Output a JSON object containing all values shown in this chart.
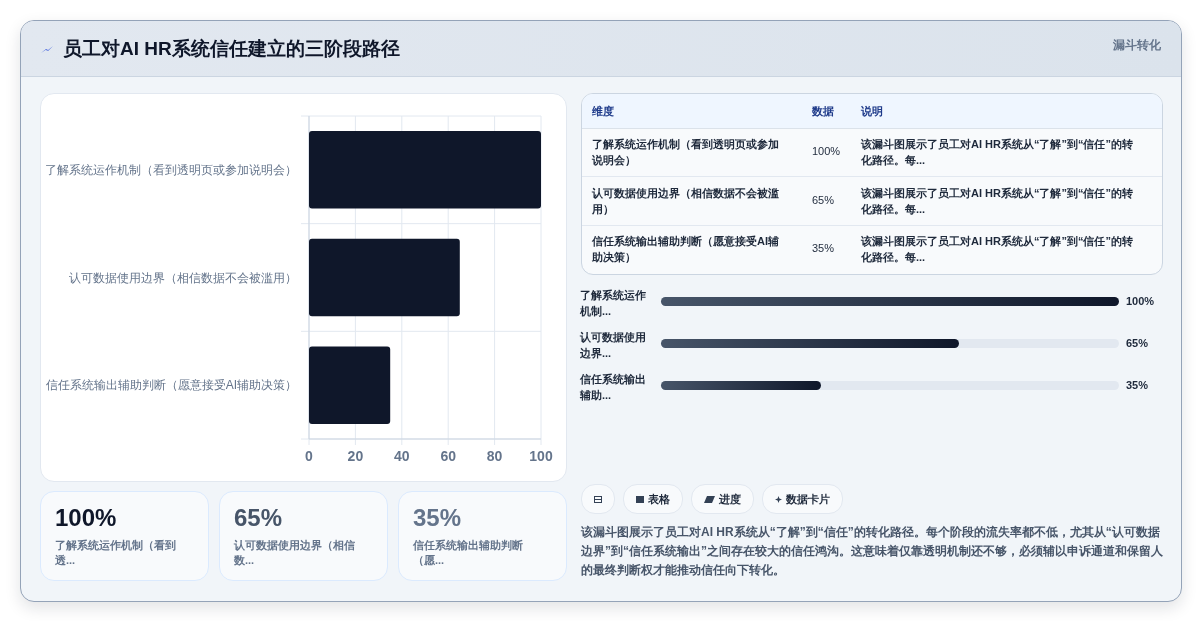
{
  "chart_data": {
    "type": "bar",
    "orientation": "horizontal",
    "title": "员工对AI HR系统信任建立的三阶段路径",
    "categories": [
      "了解系统运作机制（看到透明页或参加说明会）",
      "认可数据使用边界（相信数据不会被滥用）",
      "信任系统输出辅助判断（愿意接受AI辅助决策）"
    ],
    "values": [
      100,
      65,
      35
    ],
    "color": "#0f172a",
    "xlim": [
      0,
      100
    ],
    "xticks": [
      0,
      20,
      40,
      60,
      80,
      100
    ],
    "grid": true,
    "annotations": [
      "漏斗转化",
      "维度",
      "数据",
      "说明",
      "表格",
      "进度",
      "数据卡片",
      "该漏斗图展示了员工对AI HR系统从“了解”到“信任”的转化路径。每个阶段的流失率都不低，尤其从“认可数据边界”到“信任系统输出”之间存在较大的信任鸿沟。这意味着仅靠透明机制还不够，必须辅以申诉通道和保留人的最终判断权才能推动信任向下转化。",
      "该漏斗图展示了员工对AI HR系统从“了解”到“信任”的转化路径。每...",
      "100%",
      "65%",
      "35%",
      "了解系统运作机制（看到透...",
      "认可数据使用边界（相信数...",
      "信任系统输出辅助判断（愿...",
      "了解系统运作机制...",
      "认可数据使用边界...",
      "信任系统输出辅助..."
    ]
  }
}
